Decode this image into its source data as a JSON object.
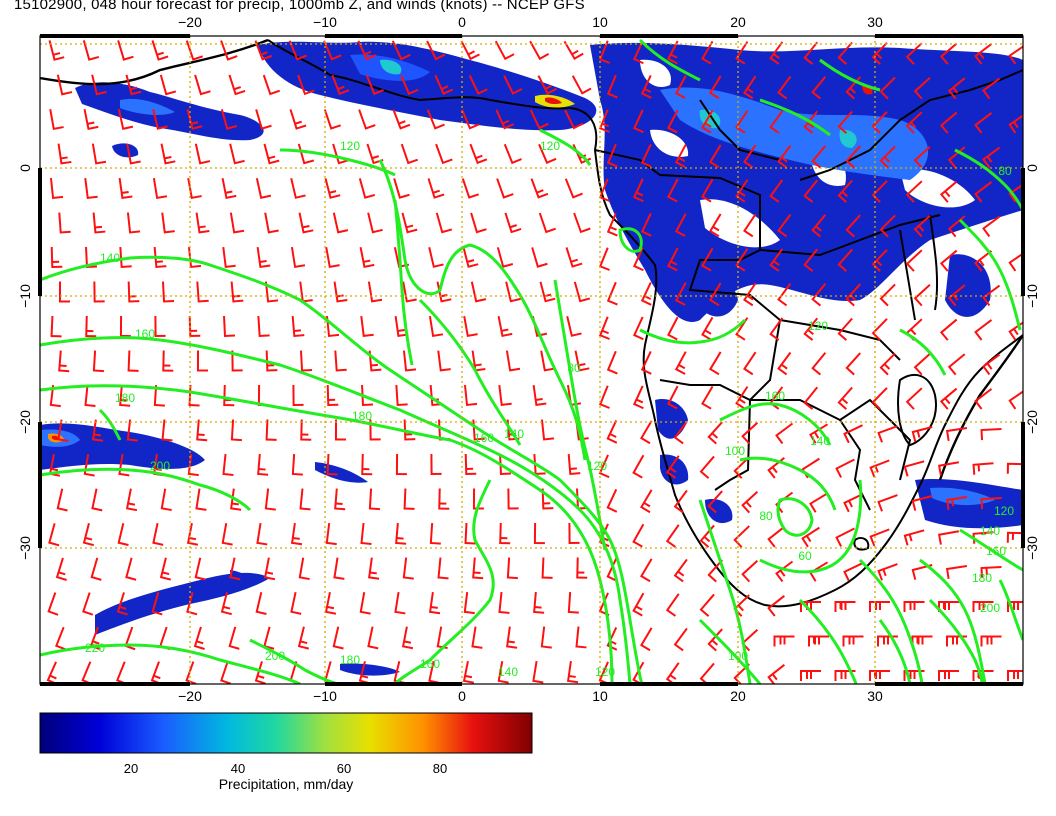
{
  "title": "15102900, 048 hour forecast for precip, 1000mb Z, and winds (knots) -- NCEP GFS",
  "axes": {
    "lon_labels": [
      "−20",
      "−10",
      "0",
      "10",
      "20",
      "30"
    ],
    "lat_labels": [
      "0",
      "−10",
      "−20",
      "−30"
    ]
  },
  "contour_labels": [
    "120",
    "140",
    "160",
    "180",
    "200",
    "220",
    "100",
    "80",
    "60",
    "40"
  ],
  "colorbar": {
    "tick_labels": [
      "20",
      "40",
      "60",
      "80"
    ],
    "title": "Precipitation, mm/day"
  },
  "colors": {
    "precip_scale": [
      "#00007a",
      "#0000d8",
      "#1a5cff",
      "#00b8e0",
      "#20d8a0",
      "#a0e040",
      "#e8e000",
      "#ff9000",
      "#e81010",
      "#800000"
    ],
    "contour": "#22ee22",
    "wind_barb": "#ff1010",
    "grid": "#d4aa00",
    "coast": "#000000"
  }
}
